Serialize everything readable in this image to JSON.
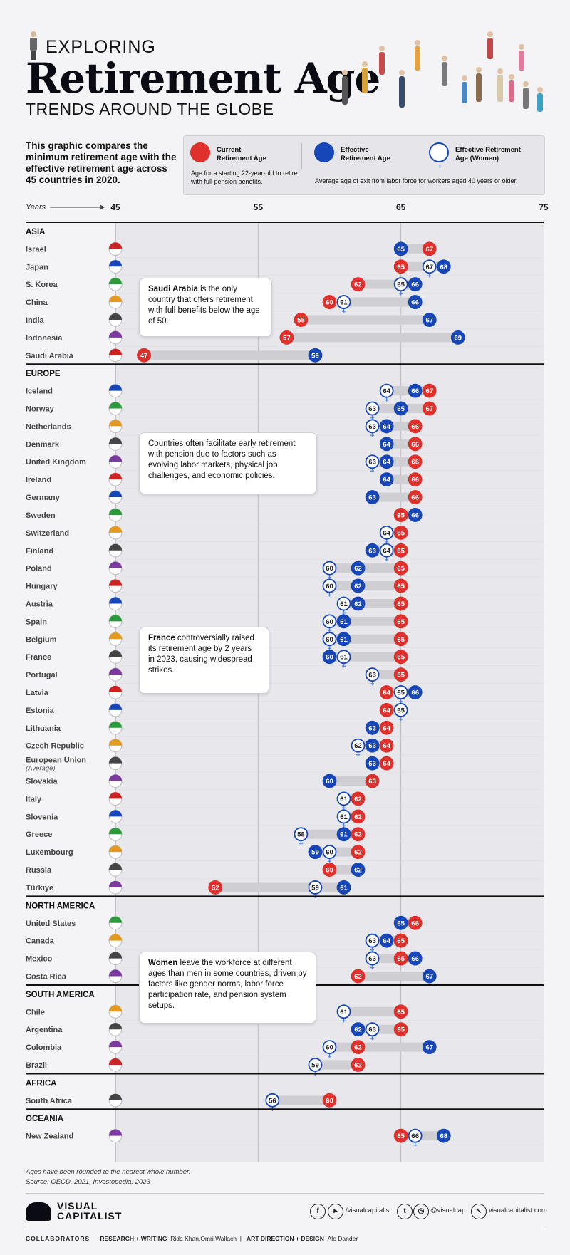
{
  "header": {
    "supertitle": "EXPLORING",
    "title": "Retirement Age",
    "subtitle": "TRENDS AROUND THE GLOBE",
    "intro_pre": "This graphic compares the minimum retirement age with the effective retirement age across ",
    "intro_bold": "45 countries",
    "intro_post": " in 2020."
  },
  "legend": {
    "current_title": "Current Retirement Age",
    "current_desc": "Age for a starting 22-year-old to retire with full pension benefits.",
    "effective_title": "Effective Retirement Age",
    "women_title": "Effective Retirement Age (Women)",
    "effective_desc": "Average age of exit from labor force for workers aged 40 years or older."
  },
  "colors": {
    "current": "#e0302c",
    "effective": "#1646b8",
    "women_fill": "#ffffff",
    "women_stroke": "#1646b8",
    "bar": "#cfcfd3",
    "row_bg": "#e8e8ec"
  },
  "callouts": [
    {
      "bold": "Saudi Arabia",
      "text": " is the only country that offers retirement with full benefits below the age of 50."
    },
    {
      "bold": "",
      "text": "Countries often facilitate early retirement with pension due to factors such as evolving labor markets, physical job challenges, and economic policies."
    },
    {
      "bold": "France",
      "text": " controversially raised its retirement age by 2 years in 2023, causing widespread strikes."
    },
    {
      "bold": "Women",
      "text": " leave the workforce at different ages than men in some countries, driven by factors like gender norms, labor force participation rate, and pension system setups."
    }
  ],
  "chart_data": {
    "type": "dot-range",
    "axis_label": "Years",
    "xlim": [
      45,
      75
    ],
    "ticks": [
      45,
      55,
      65,
      75
    ],
    "series": [
      "Current Retirement Age",
      "Effective Retirement Age",
      "Effective Retirement Age (Women)"
    ],
    "regions": [
      {
        "name": "ASIA",
        "countries": [
          {
            "name": "Israel",
            "current": 67,
            "effective": 65,
            "women": null
          },
          {
            "name": "Japan",
            "current": 65,
            "effective": 68,
            "women": 67
          },
          {
            "name": "S. Korea",
            "current": 62,
            "effective": 66,
            "women": 65
          },
          {
            "name": "China",
            "current": 60,
            "effective": 66,
            "women": 61
          },
          {
            "name": "India",
            "current": 58,
            "effective": 67,
            "women": null
          },
          {
            "name": "Indonesia",
            "current": 57,
            "effective": 69,
            "women": null
          },
          {
            "name": "Saudi Arabia",
            "current": 47,
            "effective": 59,
            "women": null
          }
        ]
      },
      {
        "name": "EUROPE",
        "countries": [
          {
            "name": "Iceland",
            "current": 67,
            "effective": 66,
            "women": 64
          },
          {
            "name": "Norway",
            "current": 67,
            "effective": 65,
            "women": 63
          },
          {
            "name": "Netherlands",
            "current": 66,
            "effective": 64,
            "women": 63
          },
          {
            "name": "Denmark",
            "current": 66,
            "effective": 64,
            "women": null
          },
          {
            "name": "United Kingdom",
            "current": 66,
            "effective": 64,
            "women": 63
          },
          {
            "name": "Ireland",
            "current": 66,
            "effective": 64,
            "women": null
          },
          {
            "name": "Germany",
            "current": 66,
            "effective": 63,
            "women": null
          },
          {
            "name": "Sweden",
            "current": 65,
            "effective": 66,
            "women": null
          },
          {
            "name": "Switzerland",
            "current": 65,
            "effective": null,
            "women": 64
          },
          {
            "name": "Finland",
            "current": 65,
            "effective": 63,
            "women": 64
          },
          {
            "name": "Poland",
            "current": 65,
            "effective": 62,
            "women": 60
          },
          {
            "name": "Hungary",
            "current": 65,
            "effective": 62,
            "women": 60
          },
          {
            "name": "Austria",
            "current": 65,
            "effective": 62,
            "women": 61
          },
          {
            "name": "Spain",
            "current": 65,
            "effective": 61,
            "women": 60
          },
          {
            "name": "Belgium",
            "current": 65,
            "effective": 61,
            "women": 60
          },
          {
            "name": "France",
            "current": 65,
            "effective": 60,
            "women": 61
          },
          {
            "name": "Portugal",
            "current": 65,
            "effective": null,
            "women": 63
          },
          {
            "name": "Latvia",
            "current": 64,
            "effective": 66,
            "women": 65
          },
          {
            "name": "Estonia",
            "current": 64,
            "effective": null,
            "women": 65
          },
          {
            "name": "Lithuania",
            "current": 64,
            "effective": 63,
            "women": null
          },
          {
            "name": "Czech Republic",
            "current": 64,
            "effective": 63,
            "women": 62
          },
          {
            "name": "European Union",
            "sub": "(Average)",
            "current": 64,
            "effective": 63,
            "women": null
          },
          {
            "name": "Slovakia",
            "current": 63,
            "effective": 60,
            "women": null
          },
          {
            "name": "Italy",
            "current": 62,
            "effective": null,
            "women": 61
          },
          {
            "name": "Slovenia",
            "current": 62,
            "effective": null,
            "women": 61
          },
          {
            "name": "Greece",
            "current": 62,
            "effective": 61,
            "women": 58
          },
          {
            "name": "Luxembourg",
            "current": 62,
            "effective": 59,
            "women": 60
          },
          {
            "name": "Russia",
            "current": 60,
            "effective": 62,
            "women": null
          },
          {
            "name": "Türkiye",
            "current": 52,
            "effective": 61,
            "women": 59
          }
        ]
      },
      {
        "name": "NORTH AMERICA",
        "countries": [
          {
            "name": "United States",
            "current": 66,
            "effective": 65,
            "women": null
          },
          {
            "name": "Canada",
            "current": 65,
            "effective": 64,
            "women": 63
          },
          {
            "name": "Mexico",
            "current": 65,
            "effective": 66,
            "women": 63
          },
          {
            "name": "Costa Rica",
            "current": 62,
            "effective": 67,
            "women": null
          }
        ]
      },
      {
        "name": "SOUTH AMERICA",
        "countries": [
          {
            "name": "Chile",
            "current": 65,
            "effective": null,
            "women": 61
          },
          {
            "name": "Argentina",
            "current": 65,
            "effective": 62,
            "women": 63
          },
          {
            "name": "Colombia",
            "current": 62,
            "effective": 67,
            "women": 60
          },
          {
            "name": "Brazil",
            "current": 62,
            "effective": null,
            "women": 59
          }
        ]
      },
      {
        "name": "AFRICA",
        "countries": [
          {
            "name": "South Africa",
            "current": 60,
            "effective": null,
            "women": 56
          }
        ]
      },
      {
        "name": "OCEANIA",
        "countries": [
          {
            "name": "New Zealand",
            "current": 65,
            "effective": 68,
            "women": 66
          }
        ]
      }
    ]
  },
  "footer": {
    "note": "Ages have been rounded to the nearest whole number.",
    "source": "Source: OECD, 2021, Investopedia, 2023",
    "brand_1": "VISUAL",
    "brand_2": "CAPITALIST",
    "social_1": "/visualcapitalist",
    "social_2": "@visualcap",
    "social_3": "visualcapitalist.com",
    "collab_label": "COLLABORATORS",
    "research_label": "RESEARCH + WRITING",
    "research_names": "Rida Khan,Omri Wallach",
    "art_label": "ART DIRECTION + DESIGN",
    "art_names": "Ale Dander"
  }
}
